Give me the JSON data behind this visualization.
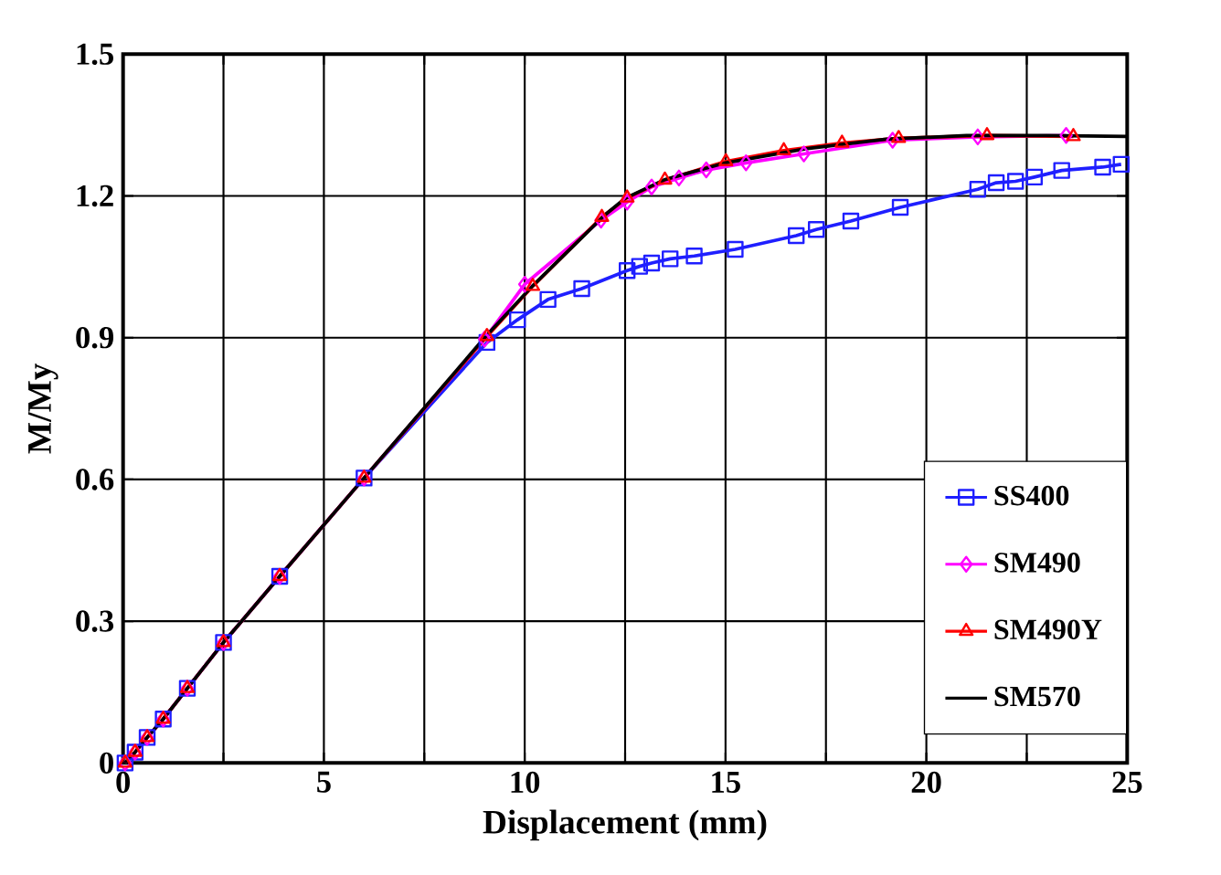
{
  "chart_data": {
    "type": "line",
    "xlabel": "Displacement (mm)",
    "ylabel": "M/My",
    "xlim": [
      0,
      25
    ],
    "ylim": [
      0,
      1.5
    ],
    "xticks": [
      0,
      {
        "value": 2.5,
        "label": null
      },
      5,
      {
        "value": 7.5,
        "label": null
      },
      10,
      {
        "value": 12.5,
        "label": null
      },
      15,
      {
        "value": 17.5,
        "label": null
      },
      20,
      {
        "value": 22.5,
        "label": null
      },
      25
    ],
    "yticks": [
      0,
      0.3,
      0.6,
      0.9,
      1.2,
      1.5
    ],
    "grid": true,
    "legend": "bottom right",
    "line_style": "solid",
    "series": [
      {
        "name": "SS400",
        "color": "#1f1fff",
        "marker": "square",
        "x": [
          0.05,
          0.3,
          0.6,
          1.0,
          1.6,
          2.5,
          3.9,
          6.0,
          9.06,
          9.82,
          10.58,
          11.42,
          12.55,
          12.86,
          13.16,
          13.62,
          14.22,
          15.24,
          16.76,
          17.26,
          18.12,
          19.35,
          21.28,
          21.74,
          22.22,
          22.69,
          23.37,
          24.39,
          24.85
        ],
        "values": [
          0.0,
          0.023,
          0.054,
          0.093,
          0.158,
          0.255,
          0.395,
          0.603,
          0.89,
          0.938,
          0.981,
          1.004,
          1.042,
          1.051,
          1.058,
          1.067,
          1.073,
          1.087,
          1.116,
          1.129,
          1.147,
          1.176,
          1.214,
          1.228,
          1.231,
          1.24,
          1.254,
          1.261,
          1.267
        ]
      },
      {
        "name": "SM490",
        "color": "#ff00ff",
        "marker": "diamond",
        "x": [
          0.05,
          0.3,
          0.6,
          1.0,
          1.6,
          2.5,
          3.9,
          6.0,
          9.0,
          10.0,
          11.9,
          12.55,
          13.16,
          13.84,
          14.52,
          15.51,
          16.95,
          19.16,
          21.28,
          23.48
        ],
        "values": [
          0.0,
          0.023,
          0.054,
          0.093,
          0.158,
          0.255,
          0.395,
          0.603,
          0.897,
          1.013,
          1.149,
          1.187,
          1.219,
          1.238,
          1.255,
          1.27,
          1.289,
          1.318,
          1.325,
          1.328
        ]
      },
      {
        "name": "SM490Y",
        "color": "#ff0000",
        "marker": "triangle",
        "x": [
          0.05,
          0.3,
          0.6,
          1.0,
          1.6,
          2.5,
          3.9,
          6.0,
          9.06,
          10.2,
          11.92,
          12.55,
          13.49,
          15.01,
          16.45,
          17.9,
          19.31,
          21.51,
          23.66
        ],
        "values": [
          0.0,
          0.023,
          0.054,
          0.093,
          0.158,
          0.255,
          0.395,
          0.603,
          0.903,
          1.009,
          1.155,
          1.196,
          1.234,
          1.273,
          1.296,
          1.312,
          1.322,
          1.328,
          1.326
        ]
      },
      {
        "name": "SM570",
        "color": "#000000",
        "marker": "none",
        "x": [
          0.05,
          0.3,
          0.6,
          1.0,
          1.6,
          2.5,
          3.9,
          6.0,
          9.0,
          10.2,
          12.0,
          12.5,
          13.5,
          15.0,
          17.0,
          19.0,
          21.0,
          23.0,
          25.0
        ],
        "values": [
          0.0,
          0.023,
          0.054,
          0.093,
          0.158,
          0.255,
          0.395,
          0.603,
          0.9,
          1.01,
          1.16,
          1.195,
          1.235,
          1.27,
          1.3,
          1.32,
          1.328,
          1.328,
          1.326
        ]
      }
    ]
  }
}
